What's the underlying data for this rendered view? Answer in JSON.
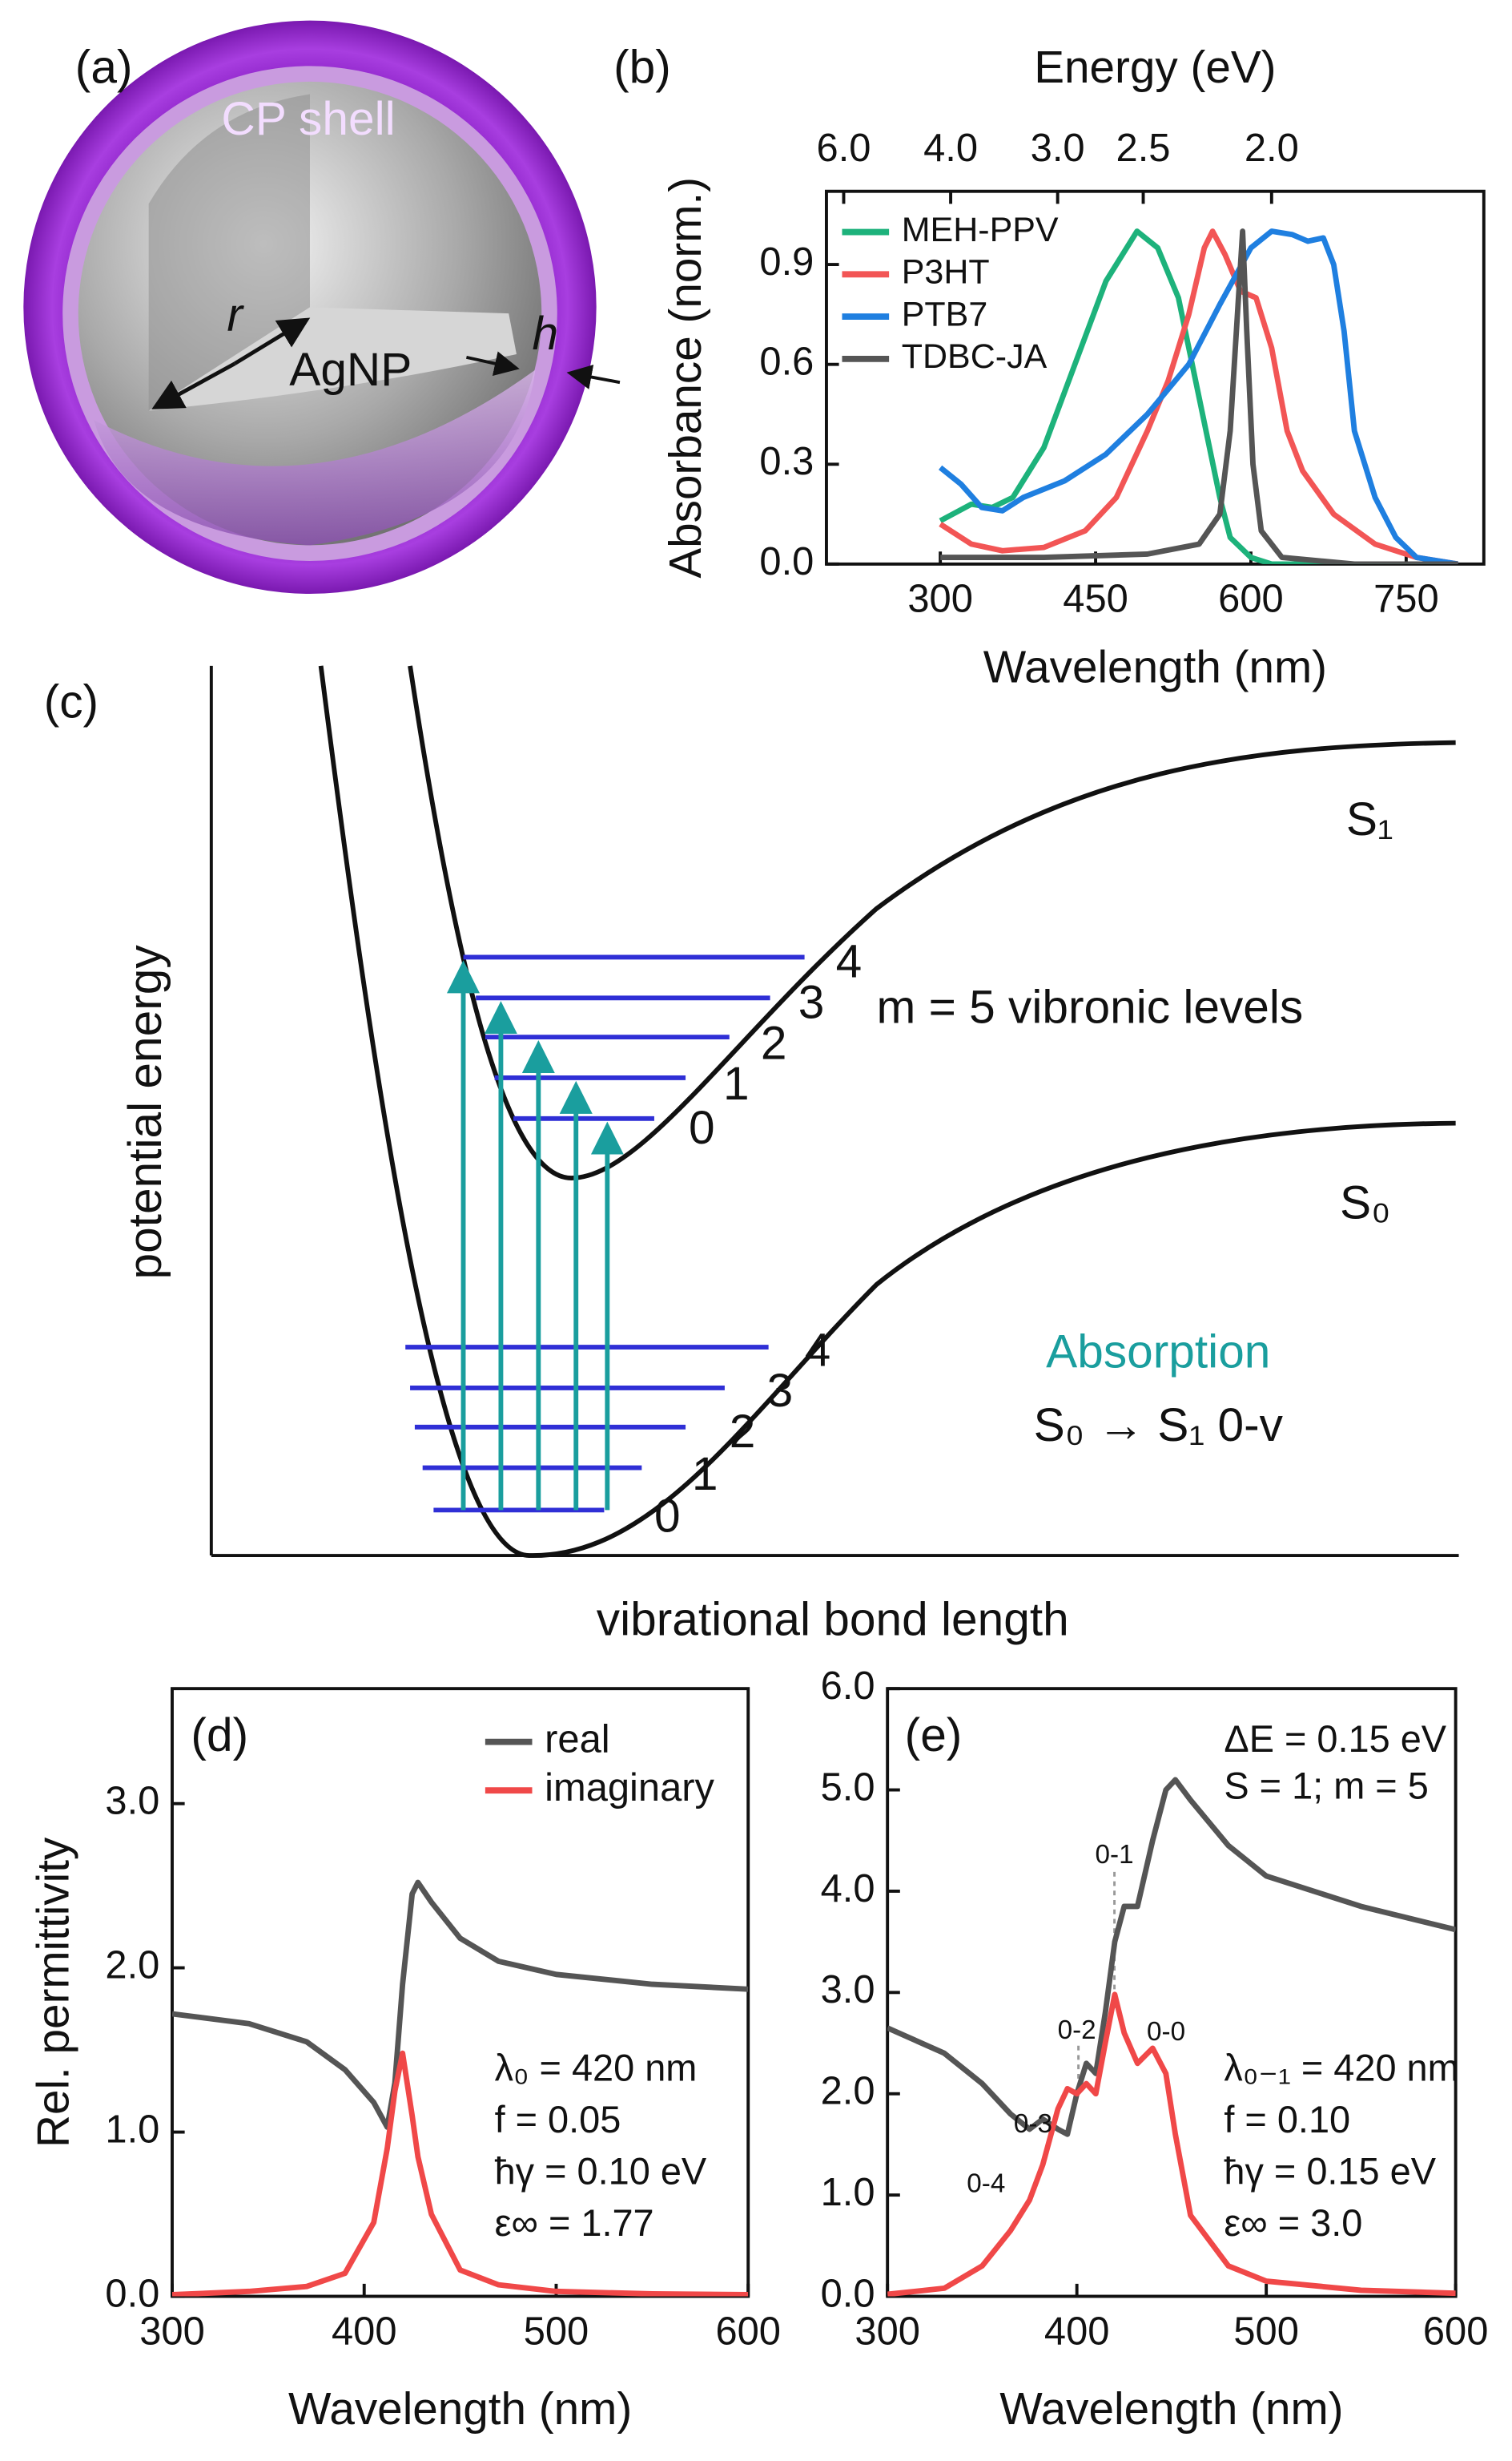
{
  "panel_a": {
    "label": "(a)",
    "shell_label": "CP shell",
    "radius_label": "r",
    "core_label": "AgNP",
    "thickness_label": "h"
  },
  "panel_c": {
    "label": "(c)",
    "upper_state": "S₁",
    "lower_state": "S₀",
    "upper_levels": [
      "0",
      "1",
      "2",
      "3",
      "4"
    ],
    "lower_levels": [
      "0",
      "1",
      "2",
      "3",
      "4"
    ],
    "note": "m = 5 vibronic levels",
    "y_label": "potential energy",
    "x_label": "vibrational bond length",
    "process": "Absorption",
    "transition": "S₀ → S₁ 0-v"
  },
  "chart_data": [
    {
      "type": "line",
      "panel_label": "(b)",
      "x_label": "Wavelength (nm)",
      "y_label": "Absorbance (norm.)",
      "x2_label": "Energy (eV)",
      "xlim": [
        190,
        825
      ],
      "ylim": [
        0,
        1.12
      ],
      "xticks": [
        300,
        450,
        600,
        750
      ],
      "yticks": [
        {
          "value": 0,
          "label": "0.0"
        },
        {
          "value": 0.3,
          "label": "0.3"
        },
        {
          "value": 0.6,
          "label": "0.6"
        },
        {
          "value": 0.9,
          "label": "0.9"
        }
      ],
      "x2scale": "reciprocal",
      "x2_constant": 1240,
      "x2ticks": [
        {
          "value": 6,
          "label": "6.0"
        },
        {
          "value": 4,
          "label": "4.0"
        },
        {
          "value": 3,
          "label": "3.0"
        },
        {
          "value": 2.5,
          "label": "2.5"
        },
        {
          "value": 2,
          "label": "2.0"
        }
      ],
      "legend": "upper left",
      "series": [
        {
          "name": "MEH-PPV",
          "color": "#1db27b",
          "x": [
            300,
            330,
            350,
            370,
            400,
            430,
            460,
            490,
            510,
            530,
            550,
            570,
            580,
            600,
            620,
            800
          ],
          "values": [
            0.13,
            0.18,
            0.17,
            0.2,
            0.35,
            0.6,
            0.85,
            1.0,
            0.95,
            0.8,
            0.5,
            0.2,
            0.08,
            0.02,
            0.0,
            0.0
          ]
        },
        {
          "name": "P3HT",
          "color": "#f25555",
          "x": [
            300,
            330,
            360,
            400,
            440,
            470,
            500,
            520,
            540,
            555,
            563,
            575,
            590,
            605,
            620,
            635,
            650,
            680,
            720,
            760,
            800
          ],
          "values": [
            0.12,
            0.06,
            0.04,
            0.05,
            0.1,
            0.2,
            0.4,
            0.55,
            0.75,
            0.95,
            1.0,
            0.93,
            0.82,
            0.8,
            0.65,
            0.4,
            0.28,
            0.15,
            0.06,
            0.02,
            0.0
          ]
        },
        {
          "name": "PTB7",
          "color": "#1f7fe0",
          "x": [
            300,
            320,
            340,
            360,
            380,
            420,
            460,
            500,
            540,
            570,
            600,
            620,
            640,
            655,
            670,
            680,
            690,
            700,
            720,
            740,
            760,
            800
          ],
          "values": [
            0.29,
            0.24,
            0.17,
            0.16,
            0.2,
            0.25,
            0.33,
            0.45,
            0.6,
            0.78,
            0.95,
            1.0,
            0.99,
            0.97,
            0.98,
            0.9,
            0.7,
            0.4,
            0.2,
            0.08,
            0.02,
            0.0
          ]
        },
        {
          "name": "TDBC-JA",
          "color": "#555555",
          "x": [
            300,
            400,
            500,
            550,
            570,
            580,
            588,
            592,
            596,
            602,
            610,
            630,
            700,
            800
          ],
          "values": [
            0.02,
            0.02,
            0.03,
            0.06,
            0.15,
            0.4,
            0.8,
            1.0,
            0.7,
            0.3,
            0.1,
            0.02,
            0.0,
            0.0
          ]
        }
      ]
    },
    {
      "type": "line",
      "panel_label": "(d)",
      "x_label": "Wavelength (nm)",
      "y_label": "Rel. permittivity",
      "xlim": [
        300,
        600
      ],
      "ylim": [
        0,
        3.7
      ],
      "xticks": [
        300,
        400,
        500,
        600
      ],
      "yticks": [
        {
          "value": 0,
          "label": "0.0"
        },
        {
          "value": 1,
          "label": "1.0"
        },
        {
          "value": 2,
          "label": "2.0"
        },
        {
          "value": 3,
          "label": "3.0"
        }
      ],
      "legend": "upper right",
      "parameters": [
        "λ₀ = 420 nm",
        "f = 0.05",
        "ħγ = 0.10 eV",
        "ε∞ = 1.77"
      ],
      "x": [
        300,
        340,
        370,
        390,
        405,
        412,
        416,
        420,
        425,
        428,
        435,
        450,
        470,
        500,
        550,
        600
      ],
      "series": [
        {
          "name": "real",
          "color": "#555555",
          "values": [
            1.72,
            1.66,
            1.55,
            1.38,
            1.18,
            1.03,
            1.3,
            1.9,
            2.45,
            2.52,
            2.4,
            2.18,
            2.04,
            1.96,
            1.9,
            1.87
          ]
        },
        {
          "name": "imaginary",
          "color": "#f04848",
          "values": [
            0.01,
            0.03,
            0.06,
            0.14,
            0.45,
            0.9,
            1.25,
            1.48,
            1.1,
            0.85,
            0.5,
            0.16,
            0.07,
            0.03,
            0.015,
            0.01
          ]
        }
      ]
    },
    {
      "type": "line",
      "panel_label": "(e)",
      "x_label": "Wavelength (nm)",
      "xlim": [
        300,
        600
      ],
      "ylim": [
        0,
        6
      ],
      "xticks": [
        300,
        400,
        500,
        600
      ],
      "yticks": [
        {
          "value": 0,
          "label": "0.0"
        },
        {
          "value": 1,
          "label": "1.0"
        },
        {
          "value": 2,
          "label": "2.0"
        },
        {
          "value": 3,
          "label": "3.0"
        },
        {
          "value": 4,
          "label": "4.0"
        },
        {
          "value": 5,
          "label": "5.0"
        },
        {
          "value": 6,
          "label": "6.0"
        }
      ],
      "header": [
        "ΔE = 0.15 eV",
        "S = 1; m = 5"
      ],
      "parameters": [
        "λ₀₋₁ = 420 nm",
        "f = 0.10",
        "ħγ = 0.15 eV",
        "ε∞ = 3.0"
      ],
      "annotations": [
        "0-4",
        "0-3",
        "0-2",
        "0-1",
        "0-0"
      ],
      "x": [
        300,
        330,
        350,
        365,
        375,
        382,
        390,
        395,
        400,
        405,
        410,
        415,
        420,
        425,
        432,
        440,
        447,
        452,
        460,
        480,
        500,
        550,
        600
      ],
      "series": [
        {
          "color": "#555555",
          "values": [
            2.65,
            2.4,
            2.1,
            1.8,
            1.65,
            1.75,
            1.65,
            1.6,
            2.0,
            2.3,
            2.2,
            2.8,
            3.5,
            3.85,
            3.85,
            4.5,
            5.0,
            5.1,
            4.9,
            4.45,
            4.15,
            3.85,
            3.62
          ]
        },
        {
          "color": "#f04848",
          "values": [
            0.02,
            0.08,
            0.3,
            0.65,
            0.95,
            1.3,
            1.85,
            2.05,
            2.0,
            2.1,
            2.0,
            2.5,
            2.98,
            2.6,
            2.3,
            2.45,
            2.2,
            1.6,
            0.8,
            0.3,
            0.15,
            0.06,
            0.03
          ]
        }
      ]
    }
  ]
}
